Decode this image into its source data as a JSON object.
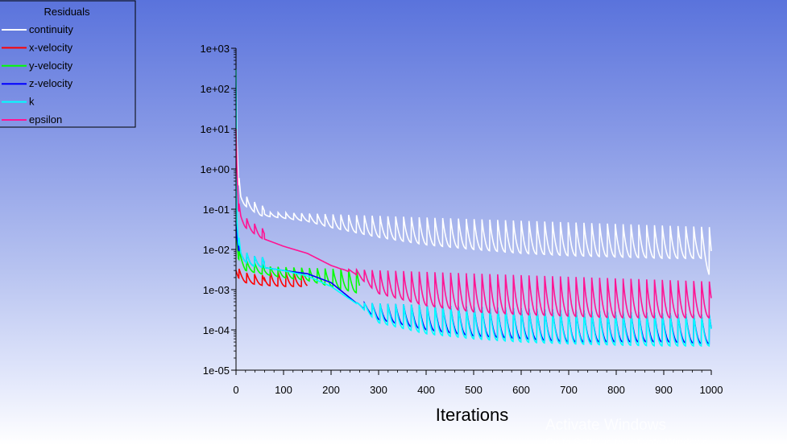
{
  "chart_data": {
    "type": "line",
    "legend_title": "Residuals",
    "legend_position": "top-left",
    "xlabel": "Iterations",
    "ylabel": "",
    "xlim": [
      0,
      1000
    ],
    "ylim": [
      1e-05,
      1000
    ],
    "yscale": "log",
    "xticks": [
      "0",
      "100",
      "200",
      "300",
      "400",
      "500",
      "600",
      "700",
      "800",
      "900",
      "1000"
    ],
    "yticks": [
      "1e+03",
      "1e+02",
      "1e+01",
      "1e+00",
      "1e-01",
      "1e-02",
      "1e-03",
      "1e-04",
      "1e-05"
    ],
    "series": [
      {
        "name": "continuity",
        "color": "#ffffff",
        "x": [
          0,
          2,
          5,
          10,
          20,
          50,
          100,
          150,
          200,
          300,
          400,
          500,
          600,
          700,
          800,
          900,
          980,
          1000
        ],
        "y": [
          300,
          5,
          0.5,
          0.15,
          0.12,
          0.07,
          0.06,
          0.05,
          0.035,
          0.02,
          0.013,
          0.01,
          0.008,
          0.007,
          0.0065,
          0.006,
          0.006,
          0.0018
        ],
        "peaks_y": 0.09
      },
      {
        "name": "x-velocity",
        "color": "#ff0000",
        "x": [
          0,
          2,
          5,
          10,
          20,
          50,
          100,
          150
        ],
        "y": [
          0.003,
          0.0025,
          0.002,
          0.0018,
          0.0015,
          0.0013,
          0.0012,
          0.0012
        ],
        "peaks_y": 0.003
      },
      {
        "name": "y-velocity",
        "color": "#00ff00",
        "x": [
          0,
          5,
          20,
          50,
          100,
          150,
          200,
          260
        ],
        "y": [
          0.03,
          0.006,
          0.003,
          0.0025,
          0.002,
          0.0017,
          0.0012,
          0.0008
        ],
        "peaks_y": 0.004
      },
      {
        "name": "z-velocity",
        "color": "#0000ff",
        "x": [
          0,
          2,
          5,
          10,
          30,
          100,
          150,
          200,
          260,
          300,
          400,
          500,
          600,
          700,
          800,
          900,
          1000
        ],
        "y": [
          0.05,
          0.02,
          0.01,
          0.006,
          0.004,
          0.003,
          0.0025,
          0.0015,
          0.0004,
          0.00018,
          0.0001,
          7e-05,
          6e-05,
          5e-05,
          5e-05,
          5e-05,
          4.5e-05
        ],
        "peaks_y": 0.0006
      },
      {
        "name": "k",
        "color": "#00ffff",
        "x": [
          0,
          2,
          5,
          10,
          30,
          100,
          150,
          200,
          260,
          300,
          400,
          500,
          600,
          700,
          800,
          900,
          1000
        ],
        "y": [
          300,
          0.05,
          0.015,
          0.006,
          0.004,
          0.003,
          0.0022,
          0.0012,
          0.0004,
          0.00015,
          8e-05,
          6e-05,
          5e-05,
          4.5e-05,
          4.2e-05,
          4e-05,
          4e-05
        ],
        "peaks_y": 0.0006
      },
      {
        "name": "epsilon",
        "color": "#ff1493",
        "x": [
          0,
          2,
          5,
          10,
          20,
          50,
          100,
          150,
          200,
          250,
          300,
          400,
          500,
          600,
          700,
          800,
          900,
          1000
        ],
        "y": [
          10,
          1,
          0.1,
          0.05,
          0.035,
          0.02,
          0.012,
          0.008,
          0.004,
          0.0025,
          0.0008,
          0.0004,
          0.00028,
          0.00024,
          0.00022,
          0.0002,
          0.0002,
          0.0002
        ],
        "peaks_y": 0.004
      }
    ]
  },
  "watermark": {
    "title": "Activate Windows",
    "subtitle": "Go to Settings to activate Windows."
  }
}
